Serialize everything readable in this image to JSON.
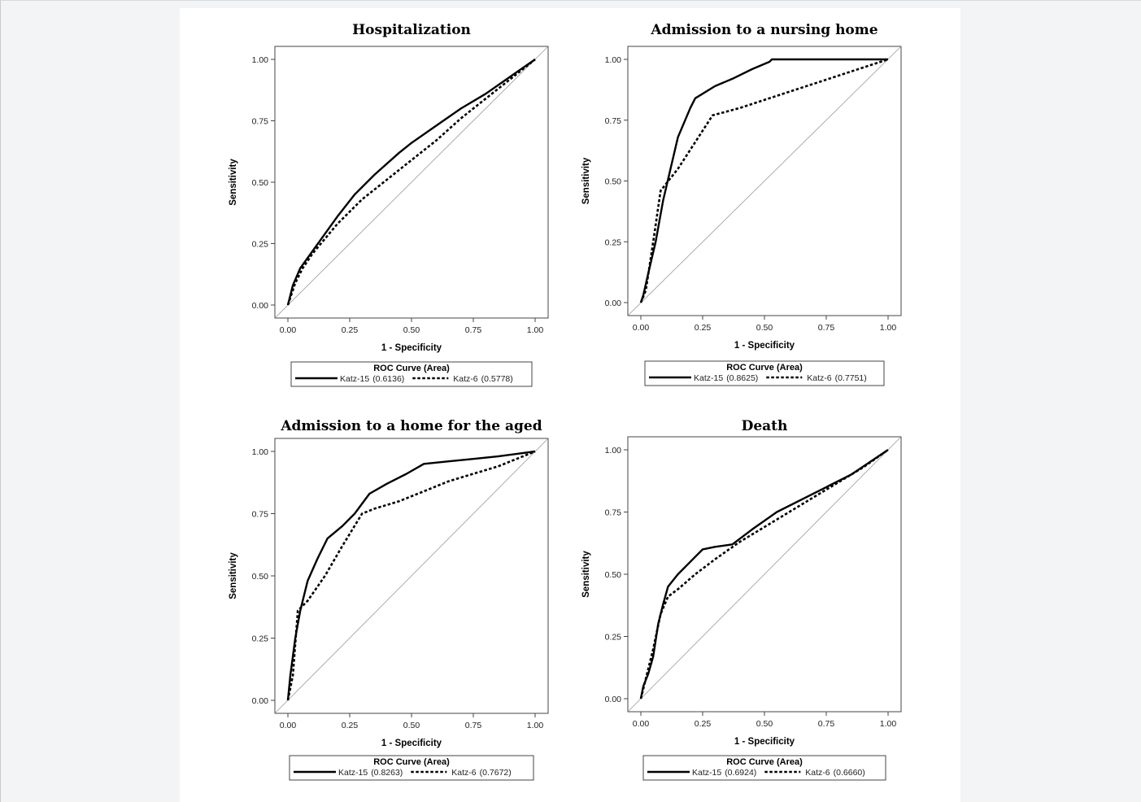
{
  "colors": {
    "page_background": "#f3f4f5",
    "figure_background": "#ffffff",
    "line": "#000000",
    "diagonal": "#999999"
  },
  "chart_data": [
    {
      "type": "line",
      "title": "Hospitalization",
      "xlabel": "1 - Specificity",
      "ylabel": "Sensitivity",
      "xlim": [
        0,
        1
      ],
      "ylim": [
        0,
        1
      ],
      "xticks": [
        "0.00",
        "0.25",
        "0.50",
        "0.75",
        "1.00"
      ],
      "yticks": [
        "0.00",
        "0.25",
        "0.50",
        "0.75",
        "1.00"
      ],
      "reference_diagonal": true,
      "legend": {
        "title": "ROC Curve (Area)",
        "placement": "below"
      },
      "series": [
        {
          "name": "Katz-15",
          "area_label": "(0.6136)",
          "style": "solid",
          "x": [
            0,
            0.02,
            0.05,
            0.1,
            0.15,
            0.2,
            0.27,
            0.35,
            0.45,
            0.5,
            0.6,
            0.7,
            0.8,
            0.9,
            1.0
          ],
          "y": [
            0,
            0.08,
            0.15,
            0.22,
            0.29,
            0.36,
            0.45,
            0.53,
            0.62,
            0.66,
            0.73,
            0.8,
            0.86,
            0.93,
            1.0
          ]
        },
        {
          "name": "Katz-6",
          "area_label": "(0.5778)",
          "style": "dashed",
          "x": [
            0,
            0.03,
            0.06,
            0.1,
            0.15,
            0.2,
            0.25,
            0.3,
            0.4,
            0.5,
            0.6,
            0.7,
            0.8,
            0.9,
            1.0
          ],
          "y": [
            0,
            0.09,
            0.15,
            0.21,
            0.27,
            0.33,
            0.38,
            0.43,
            0.51,
            0.59,
            0.67,
            0.76,
            0.84,
            0.92,
            1.0
          ]
        }
      ]
    },
    {
      "type": "line",
      "title": "Admission to a nursing home",
      "xlabel": "1 - Specificity",
      "ylabel": "Sensitivity",
      "xlim": [
        0,
        1
      ],
      "ylim": [
        0,
        1
      ],
      "xticks": [
        "0.00",
        "0.25",
        "0.50",
        "0.75",
        "1.00"
      ],
      "yticks": [
        "0.00",
        "0.25",
        "0.50",
        "0.75",
        "1.00"
      ],
      "reference_diagonal": true,
      "legend": {
        "title": "ROC Curve (Area)",
        "placement": "below"
      },
      "series": [
        {
          "name": "Katz-15",
          "area_label": "(0.8625)",
          "style": "solid",
          "x": [
            0,
            0.01,
            0.03,
            0.06,
            0.09,
            0.12,
            0.15,
            0.2,
            0.22,
            0.3,
            0.37,
            0.45,
            0.52,
            0.53,
            0.75,
            1.0
          ],
          "y": [
            0,
            0.03,
            0.12,
            0.25,
            0.42,
            0.55,
            0.68,
            0.8,
            0.84,
            0.89,
            0.92,
            0.96,
            0.99,
            1.0,
            1.0,
            1.0
          ]
        },
        {
          "name": "Katz-6",
          "area_label": "(0.7751)",
          "style": "dashed",
          "x": [
            0,
            0.02,
            0.05,
            0.08,
            0.15,
            0.22,
            0.29,
            0.4,
            0.55,
            0.7,
            0.85,
            1.0
          ],
          "y": [
            0,
            0.05,
            0.25,
            0.46,
            0.55,
            0.66,
            0.77,
            0.8,
            0.85,
            0.9,
            0.95,
            1.0
          ]
        }
      ]
    },
    {
      "type": "line",
      "title": "Admission to a home for the aged",
      "xlabel": "1 - Specificity",
      "ylabel": "Sensitivity",
      "xlim": [
        0,
        1
      ],
      "ylim": [
        0,
        1
      ],
      "xticks": [
        "0.00",
        "0.25",
        "0.50",
        "0.75",
        "1.00"
      ],
      "yticks": [
        "0.00",
        "0.25",
        "0.50",
        "0.75",
        "1.00"
      ],
      "reference_diagonal": true,
      "legend": {
        "title": "ROC Curve (Area)",
        "placement": "below"
      },
      "series": [
        {
          "name": "Katz-15",
          "area_label": "(0.8263)",
          "style": "solid",
          "x": [
            0,
            0.01,
            0.03,
            0.05,
            0.08,
            0.12,
            0.16,
            0.22,
            0.27,
            0.33,
            0.4,
            0.48,
            0.55,
            0.65,
            0.75,
            0.85,
            1.0
          ],
          "y": [
            0,
            0.1,
            0.25,
            0.36,
            0.48,
            0.57,
            0.65,
            0.7,
            0.75,
            0.83,
            0.87,
            0.91,
            0.95,
            0.96,
            0.97,
            0.98,
            1.0
          ]
        },
        {
          "name": "Katz-6",
          "area_label": "(0.7672)",
          "style": "dashed",
          "x": [
            0,
            0.02,
            0.04,
            0.08,
            0.15,
            0.22,
            0.3,
            0.35,
            0.45,
            0.55,
            0.65,
            0.75,
            0.85,
            1.0
          ],
          "y": [
            0,
            0.1,
            0.36,
            0.4,
            0.5,
            0.62,
            0.75,
            0.77,
            0.8,
            0.84,
            0.88,
            0.91,
            0.94,
            1.0
          ]
        }
      ]
    },
    {
      "type": "line",
      "title": "Death",
      "xlabel": "1 - Specificity",
      "ylabel": "Sensitivity",
      "xlim": [
        0,
        1
      ],
      "ylim": [
        0,
        1
      ],
      "xticks": [
        "0.00",
        "0.25",
        "0.50",
        "0.75",
        "1.00"
      ],
      "yticks": [
        "0.00",
        "0.25",
        "0.50",
        "0.75",
        "1.00"
      ],
      "reference_diagonal": true,
      "legend": {
        "title": "ROC Curve (Area)",
        "placement": "below"
      },
      "series": [
        {
          "name": "Katz-15",
          "area_label": "(0.6924)",
          "style": "solid",
          "x": [
            0,
            0.01,
            0.03,
            0.05,
            0.07,
            0.09,
            0.11,
            0.15,
            0.2,
            0.25,
            0.3,
            0.37,
            0.45,
            0.55,
            0.65,
            0.75,
            0.85,
            1.0
          ],
          "y": [
            0,
            0.05,
            0.1,
            0.17,
            0.3,
            0.38,
            0.45,
            0.5,
            0.55,
            0.6,
            0.61,
            0.62,
            0.68,
            0.75,
            0.8,
            0.85,
            0.9,
            1.0
          ]
        },
        {
          "name": "Katz-6",
          "area_label": "(0.6660)",
          "style": "dashed",
          "x": [
            0,
            0.02,
            0.05,
            0.08,
            0.11,
            0.15,
            0.22,
            0.3,
            0.4,
            0.5,
            0.6,
            0.7,
            0.8,
            0.9,
            1.0
          ],
          "y": [
            0,
            0.08,
            0.2,
            0.34,
            0.41,
            0.44,
            0.5,
            0.56,
            0.63,
            0.69,
            0.75,
            0.81,
            0.87,
            0.93,
            1.0
          ]
        }
      ]
    }
  ]
}
